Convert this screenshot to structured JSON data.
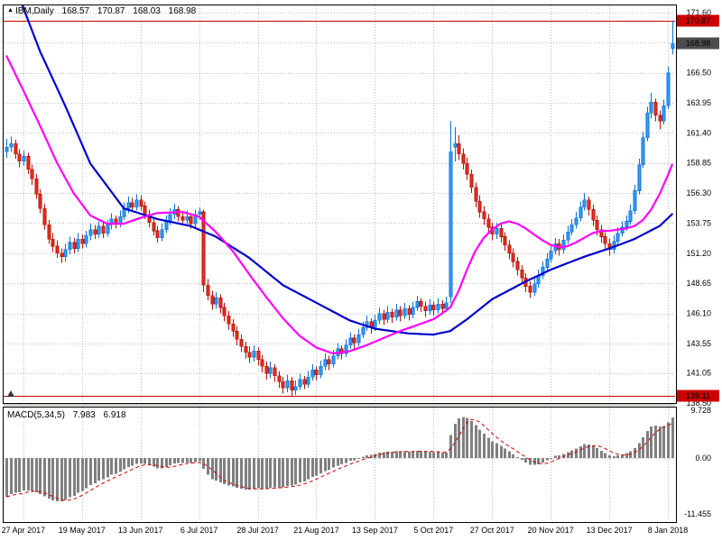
{
  "icons": {
    "symbol_marker": "▲"
  },
  "header": {
    "symbol": "IBM,Daily",
    "open": "168.57",
    "high": "170.87",
    "low": "168.03",
    "close": "168.98"
  },
  "chart_data": {
    "type": "candlestick",
    "symbol": "IBM",
    "timeframe": "Daily",
    "title": "IBM,Daily",
    "price_axis": {
      "min": 138.5,
      "max": 171.6,
      "tick_labels": [
        "171.60",
        "166.50",
        "163.95",
        "161.40",
        "158.85",
        "156.30",
        "153.75",
        "151.20",
        "148.65",
        "146.10",
        "143.55",
        "141.05",
        "138.50"
      ],
      "extra_grid": [
        169.05
      ]
    },
    "time_axis": {
      "labels": [
        "27 Apr 2017",
        "19 May 2017",
        "13 Jun 2017",
        "6 Jul 2017",
        "28 Jul 2017",
        "21 Aug 2017",
        "13 Sep 2017",
        "5 Oct 2017",
        "27 Oct 2017",
        "20 Nov 2017",
        "13 Dec 2017",
        "8 Jan 2018"
      ],
      "first_label_candle": 4,
      "candles_per_label": 14
    },
    "horizontal_lines": [
      {
        "value": 170.87,
        "color": "#cc0000"
      },
      {
        "value": 139.11,
        "color": "#cc0000"
      }
    ],
    "price_badges": [
      {
        "label": "170.87",
        "value": 170.87,
        "bg": "#cc0000"
      },
      {
        "label": "168.98",
        "value": 168.98,
        "bg": "#4d4d4d"
      },
      {
        "label": "139.11",
        "value": 139.11,
        "bg": "#cc0000"
      }
    ],
    "candle_colors": {
      "up_fill": "#31a2ff",
      "up_stroke": "#0f6dd0",
      "down_fill": "#ef2e24",
      "down_stroke": "#b01208"
    },
    "candles": [
      [
        159.8,
        160.9,
        159.3,
        160.2
      ],
      [
        160.2,
        161.1,
        159.8,
        160.5
      ],
      [
        160.5,
        160.8,
        159.2,
        159.6
      ],
      [
        159.6,
        160.0,
        158.5,
        159.0
      ],
      [
        159.0,
        159.9,
        158.6,
        159.4
      ],
      [
        159.4,
        159.7,
        157.9,
        158.3
      ],
      [
        158.3,
        158.7,
        157.0,
        157.5
      ],
      [
        157.5,
        157.9,
        155.8,
        156.2
      ],
      [
        156.2,
        156.6,
        154.6,
        155.0
      ],
      [
        155.0,
        155.4,
        153.2,
        153.6
      ],
      [
        153.6,
        154.0,
        152.0,
        152.4
      ],
      [
        152.4,
        152.9,
        151.3,
        151.8
      ],
      [
        151.8,
        152.3,
        150.8,
        151.2
      ],
      [
        151.2,
        151.6,
        150.4,
        150.9
      ],
      [
        150.9,
        152.0,
        150.5,
        151.5
      ],
      [
        151.5,
        152.6,
        151.1,
        152.1
      ],
      [
        152.1,
        152.5,
        151.2,
        151.6
      ],
      [
        151.6,
        152.9,
        151.3,
        152.4
      ],
      [
        152.4,
        152.8,
        151.6,
        152.0
      ],
      [
        152.0,
        153.1,
        151.7,
        152.7
      ],
      [
        152.7,
        153.7,
        152.3,
        153.2
      ],
      [
        153.2,
        153.6,
        152.4,
        152.8
      ],
      [
        152.8,
        153.9,
        152.5,
        153.5
      ],
      [
        153.5,
        153.8,
        152.5,
        152.9
      ],
      [
        152.9,
        154.0,
        152.6,
        153.6
      ],
      [
        153.6,
        154.6,
        153.2,
        154.1
      ],
      [
        154.1,
        154.4,
        153.3,
        153.7
      ],
      [
        153.7,
        154.8,
        153.4,
        154.3
      ],
      [
        154.3,
        155.5,
        154.0,
        155.0
      ],
      [
        155.0,
        156.0,
        154.6,
        155.5
      ],
      [
        155.5,
        155.9,
        154.7,
        155.1
      ],
      [
        155.1,
        156.2,
        154.8,
        155.7
      ],
      [
        155.7,
        156.1,
        154.8,
        155.2
      ],
      [
        155.2,
        155.6,
        154.1,
        154.5
      ],
      [
        154.5,
        154.9,
        153.4,
        153.8
      ],
      [
        153.8,
        154.2,
        152.7,
        153.1
      ],
      [
        153.1,
        153.5,
        152.1,
        152.5
      ],
      [
        152.5,
        153.7,
        152.2,
        153.2
      ],
      [
        153.2,
        154.4,
        152.9,
        153.9
      ],
      [
        153.9,
        155.0,
        153.6,
        154.5
      ],
      [
        154.5,
        155.4,
        154.1,
        154.9
      ],
      [
        154.9,
        155.2,
        153.9,
        154.3
      ],
      [
        154.3,
        154.7,
        153.6,
        154.0
      ],
      [
        154.0,
        154.8,
        153.7,
        154.3
      ],
      [
        154.3,
        154.6,
        153.3,
        153.7
      ],
      [
        153.7,
        154.9,
        153.4,
        154.5
      ],
      [
        154.5,
        155.1,
        154.0,
        154.7
      ],
      [
        154.7,
        154.9,
        147.9,
        148.5
      ],
      [
        148.5,
        149.0,
        147.2,
        147.6
      ],
      [
        147.6,
        148.0,
        146.4,
        146.9
      ],
      [
        146.9,
        147.9,
        146.5,
        147.4
      ],
      [
        147.4,
        147.7,
        146.1,
        146.6
      ],
      [
        146.6,
        147.0,
        145.4,
        145.9
      ],
      [
        145.9,
        146.3,
        144.7,
        145.2
      ],
      [
        145.2,
        145.6,
        144.1,
        144.6
      ],
      [
        144.6,
        145.0,
        143.4,
        143.9
      ],
      [
        143.9,
        144.3,
        142.8,
        143.3
      ],
      [
        143.3,
        143.7,
        142.3,
        142.8
      ],
      [
        142.8,
        143.3,
        141.9,
        142.4
      ],
      [
        142.4,
        143.4,
        142.0,
        142.9
      ],
      [
        142.9,
        143.2,
        141.7,
        142.2
      ],
      [
        142.2,
        142.6,
        141.1,
        141.6
      ],
      [
        141.6,
        142.0,
        140.5,
        141.0
      ],
      [
        141.0,
        142.0,
        140.6,
        141.5
      ],
      [
        141.5,
        141.8,
        140.3,
        140.8
      ],
      [
        140.8,
        141.2,
        139.8,
        140.3
      ],
      [
        140.3,
        140.7,
        139.3,
        139.8
      ],
      [
        139.8,
        140.9,
        139.4,
        140.4
      ],
      [
        140.4,
        140.7,
        139.11,
        139.6
      ],
      [
        139.6,
        140.4,
        139.2,
        139.9
      ],
      [
        139.9,
        141.0,
        139.6,
        140.5
      ],
      [
        140.5,
        140.8,
        139.7,
        140.1
      ],
      [
        140.1,
        141.2,
        139.8,
        140.7
      ],
      [
        140.7,
        141.8,
        140.4,
        141.3
      ],
      [
        141.3,
        141.6,
        140.4,
        140.9
      ],
      [
        140.9,
        142.1,
        140.6,
        141.6
      ],
      [
        141.6,
        142.7,
        141.3,
        142.2
      ],
      [
        142.2,
        142.5,
        141.3,
        141.8
      ],
      [
        141.8,
        143.0,
        141.5,
        142.5
      ],
      [
        142.5,
        143.6,
        142.2,
        143.1
      ],
      [
        143.1,
        143.4,
        142.2,
        142.7
      ],
      [
        142.7,
        143.9,
        142.4,
        143.4
      ],
      [
        143.4,
        144.5,
        143.1,
        144.0
      ],
      [
        144.0,
        144.3,
        143.1,
        143.6
      ],
      [
        143.6,
        144.8,
        143.3,
        144.3
      ],
      [
        144.3,
        145.4,
        144.0,
        144.9
      ],
      [
        144.9,
        145.9,
        144.6,
        145.4
      ],
      [
        145.4,
        145.7,
        144.4,
        144.9
      ],
      [
        144.9,
        146.0,
        144.6,
        145.5
      ],
      [
        145.5,
        146.6,
        145.2,
        146.1
      ],
      [
        146.1,
        146.4,
        145.1,
        145.6
      ],
      [
        145.6,
        146.7,
        145.3,
        146.2
      ],
      [
        146.2,
        146.5,
        145.3,
        145.8
      ],
      [
        145.8,
        146.9,
        145.5,
        146.4
      ],
      [
        146.4,
        146.7,
        145.4,
        145.9
      ],
      [
        145.9,
        147.0,
        145.6,
        146.5
      ],
      [
        146.5,
        146.8,
        145.5,
        146.0
      ],
      [
        146.0,
        147.1,
        145.7,
        146.6
      ],
      [
        146.6,
        147.6,
        146.3,
        147.1
      ],
      [
        147.1,
        147.4,
        146.2,
        146.7
      ],
      [
        146.7,
        147.1,
        145.8,
        146.3
      ],
      [
        146.3,
        147.3,
        146.0,
        146.8
      ],
      [
        146.8,
        147.1,
        145.9,
        146.4
      ],
      [
        146.4,
        147.4,
        146.1,
        146.9
      ],
      [
        146.9,
        147.2,
        146.0,
        146.5
      ],
      [
        146.5,
        147.5,
        146.2,
        147.0
      ],
      [
        147.5,
        162.4,
        147.0,
        159.8
      ],
      [
        160.2,
        161.9,
        159.0,
        160.5
      ],
      [
        160.5,
        161.2,
        159.1,
        159.6
      ],
      [
        159.6,
        160.1,
        158.3,
        158.8
      ],
      [
        158.8,
        159.3,
        157.4,
        157.9
      ],
      [
        157.9,
        158.3,
        156.3,
        156.8
      ],
      [
        156.8,
        157.2,
        155.1,
        155.6
      ],
      [
        155.6,
        156.1,
        154.2,
        154.7
      ],
      [
        154.7,
        155.2,
        153.6,
        154.1
      ],
      [
        154.1,
        154.5,
        152.9,
        153.4
      ],
      [
        153.4,
        153.8,
        152.3,
        152.8
      ],
      [
        152.8,
        153.8,
        152.4,
        153.3
      ],
      [
        153.3,
        153.7,
        152.1,
        152.6
      ],
      [
        152.6,
        153.0,
        151.4,
        151.9
      ],
      [
        151.9,
        152.3,
        150.7,
        151.2
      ],
      [
        151.2,
        151.6,
        150.0,
        150.5
      ],
      [
        150.5,
        150.9,
        149.3,
        149.8
      ],
      [
        149.8,
        150.2,
        148.6,
        149.1
      ],
      [
        149.1,
        149.5,
        147.9,
        148.4
      ],
      [
        148.4,
        148.8,
        147.4,
        147.9
      ],
      [
        147.9,
        149.1,
        147.6,
        148.6
      ],
      [
        148.6,
        149.8,
        148.3,
        149.3
      ],
      [
        149.3,
        150.5,
        149.0,
        150.0
      ],
      [
        150.0,
        151.2,
        149.7,
        150.7
      ],
      [
        150.7,
        151.9,
        150.4,
        151.4
      ],
      [
        151.4,
        152.5,
        151.1,
        152.0
      ],
      [
        152.0,
        152.4,
        151.0,
        151.5
      ],
      [
        151.5,
        152.8,
        151.2,
        152.3
      ],
      [
        152.3,
        153.5,
        152.0,
        153.0
      ],
      [
        153.0,
        154.1,
        152.7,
        153.6
      ],
      [
        153.6,
        154.7,
        153.3,
        154.2
      ],
      [
        154.2,
        155.6,
        153.9,
        155.1
      ],
      [
        155.1,
        156.3,
        154.8,
        155.7
      ],
      [
        155.7,
        156.0,
        154.4,
        154.9
      ],
      [
        154.9,
        155.3,
        153.5,
        154.0
      ],
      [
        154.0,
        154.4,
        152.7,
        153.2
      ],
      [
        153.2,
        153.6,
        152.1,
        152.6
      ],
      [
        152.6,
        153.0,
        151.5,
        152.0
      ],
      [
        152.0,
        152.4,
        151.0,
        151.5
      ],
      [
        151.5,
        152.7,
        151.2,
        152.2
      ],
      [
        152.2,
        153.4,
        151.9,
        152.9
      ],
      [
        152.9,
        153.9,
        152.6,
        153.4
      ],
      [
        153.4,
        154.4,
        153.1,
        153.9
      ],
      [
        153.9,
        155.3,
        153.6,
        154.8
      ],
      [
        154.8,
        157.0,
        154.5,
        156.5
      ],
      [
        156.5,
        159.2,
        156.2,
        158.7
      ],
      [
        158.7,
        161.5,
        158.4,
        161.0
      ],
      [
        161.0,
        163.6,
        160.7,
        163.1
      ],
      [
        163.1,
        164.8,
        162.6,
        164.0
      ],
      [
        164.0,
        164.3,
        162.4,
        162.9
      ],
      [
        162.9,
        163.3,
        161.7,
        162.4
      ],
      [
        162.4,
        164.2,
        162.1,
        163.7
      ],
      [
        163.7,
        167.0,
        163.4,
        166.5
      ],
      [
        168.57,
        170.87,
        168.03,
        168.98
      ]
    ],
    "moving_averages": [
      {
        "name": "slow-ma",
        "color": "#0000cc",
        "width": 2.2,
        "waypoints": [
          [
            0,
            176.5
          ],
          [
            4,
            172.0
          ],
          [
            8,
            168.3
          ],
          [
            14,
            163.7
          ],
          [
            20,
            158.8
          ],
          [
            28,
            155.0
          ],
          [
            36,
            154.1
          ],
          [
            44,
            153.5
          ],
          [
            50,
            152.6
          ],
          [
            58,
            150.8
          ],
          [
            66,
            148.5
          ],
          [
            74,
            147.0
          ],
          [
            82,
            145.5
          ],
          [
            88,
            144.8
          ],
          [
            96,
            144.4
          ],
          [
            102,
            144.3
          ],
          [
            106,
            144.6
          ],
          [
            110,
            145.6
          ],
          [
            116,
            147.3
          ],
          [
            124,
            148.8
          ],
          [
            130,
            149.8
          ],
          [
            138,
            150.9
          ],
          [
            144,
            151.6
          ],
          [
            150,
            152.4
          ],
          [
            156,
            153.5
          ],
          [
            159,
            154.5
          ]
        ]
      },
      {
        "name": "fast-ma",
        "color": "#ff00ff",
        "width": 2.2,
        "waypoints": [
          [
            0,
            167.9
          ],
          [
            4,
            165.0
          ],
          [
            8,
            162.0
          ],
          [
            12,
            158.9
          ],
          [
            16,
            156.3
          ],
          [
            20,
            154.4
          ],
          [
            24,
            153.7
          ],
          [
            28,
            153.7
          ],
          [
            32,
            154.2
          ],
          [
            36,
            154.6
          ],
          [
            42,
            154.7
          ],
          [
            46,
            154.3
          ],
          [
            50,
            153.0
          ],
          [
            54,
            151.4
          ],
          [
            58,
            149.4
          ],
          [
            62,
            147.5
          ],
          [
            66,
            145.7
          ],
          [
            70,
            144.2
          ],
          [
            74,
            143.2
          ],
          [
            78,
            142.7
          ],
          [
            82,
            142.9
          ],
          [
            86,
            143.4
          ],
          [
            90,
            144.0
          ],
          [
            94,
            144.6
          ],
          [
            98,
            145.1
          ],
          [
            102,
            145.6
          ],
          [
            106,
            146.6
          ],
          [
            108,
            148.0
          ],
          [
            110,
            149.8
          ],
          [
            112,
            151.4
          ],
          [
            114,
            152.5
          ],
          [
            116,
            153.2
          ],
          [
            118,
            153.7
          ],
          [
            120,
            153.9
          ],
          [
            122,
            153.7
          ],
          [
            124,
            153.3
          ],
          [
            126,
            152.8
          ],
          [
            128,
            152.3
          ],
          [
            130,
            151.9
          ],
          [
            132,
            151.7
          ],
          [
            134,
            151.8
          ],
          [
            136,
            152.1
          ],
          [
            138,
            152.5
          ],
          [
            140,
            152.9
          ],
          [
            142,
            153.1
          ],
          [
            144,
            153.1
          ],
          [
            146,
            153.2
          ],
          [
            148,
            153.3
          ],
          [
            150,
            153.5
          ],
          [
            152,
            154.0
          ],
          [
            154,
            154.9
          ],
          [
            156,
            156.2
          ],
          [
            158,
            157.8
          ],
          [
            159,
            158.7
          ]
        ]
      }
    ],
    "macd": {
      "label": "MACD(5,34,5)",
      "fast": 5,
      "slow": 34,
      "signal": 5,
      "value": "7.983",
      "signal_value": "6.918",
      "axis_ticks": [
        {
          "label": "9.728",
          "value": 9.728
        },
        {
          "label": "0.00",
          "value": 0
        },
        {
          "label": "-11.455",
          "value": -11.455
        }
      ],
      "hist_color": "#808080",
      "signal_color": "#cc0000",
      "ema_fast_seed": 160.0,
      "ema_slow_seed": 168.5,
      "scale_max": 10.5,
      "scale_min": -13.1
    }
  }
}
